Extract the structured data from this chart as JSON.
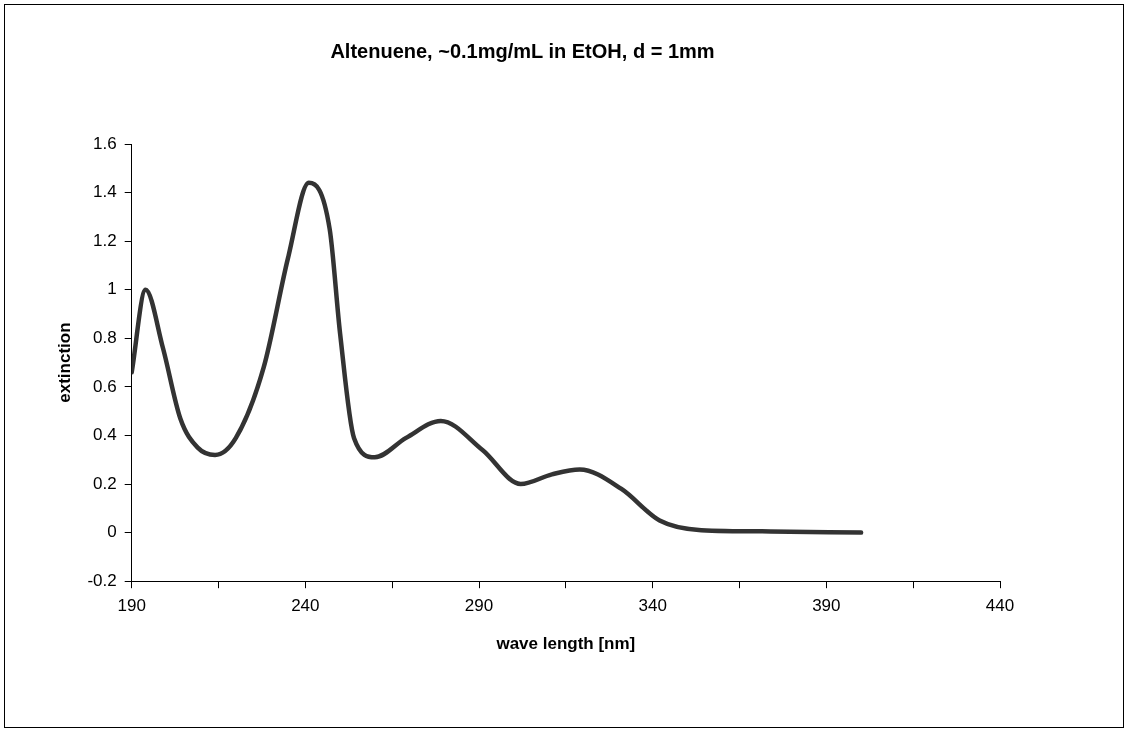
{
  "chart_data": {
    "type": "line",
    "title": "Altenuene, ~0.1mg/mL in EtOH, d = 1mm",
    "xlabel": "wave length [nm]",
    "ylabel": "extinction",
    "xlim": [
      190,
      440
    ],
    "xticks": [
      190,
      {
        "value": 215,
        "label": null
      },
      240,
      {
        "value": 265,
        "label": null
      },
      290,
      {
        "value": 315,
        "label": null
      },
      340,
      {
        "value": 365,
        "label": null
      },
      390,
      {
        "value": 415,
        "label": null
      },
      440
    ],
    "ylim": [
      -0.2,
      1.6
    ],
    "yticks": [
      -0.2,
      0,
      0.2,
      0.4,
      0.6,
      0.8,
      1,
      1.2,
      1.4,
      1.6
    ],
    "grid": false,
    "legend": false,
    "marker": "none",
    "line_style": "solid",
    "series": [
      {
        "color": "#333333",
        "x": [
          190,
          194,
          199,
          204,
          209,
          214,
          220,
          228,
          235,
          241,
          247,
          250,
          254,
          260,
          269,
          279,
          291,
          302,
          311,
          319,
          331,
          342,
          354,
          374,
          400
        ],
        "values": [
          0.66,
          1.0,
          0.76,
          0.47,
          0.35,
          0.32,
          0.39,
          0.68,
          1.13,
          1.44,
          1.25,
          0.82,
          0.39,
          0.31,
          0.39,
          0.46,
          0.34,
          0.2,
          0.24,
          0.26,
          0.18,
          0.05,
          0.01,
          0.005,
          0
        ]
      }
    ]
  }
}
